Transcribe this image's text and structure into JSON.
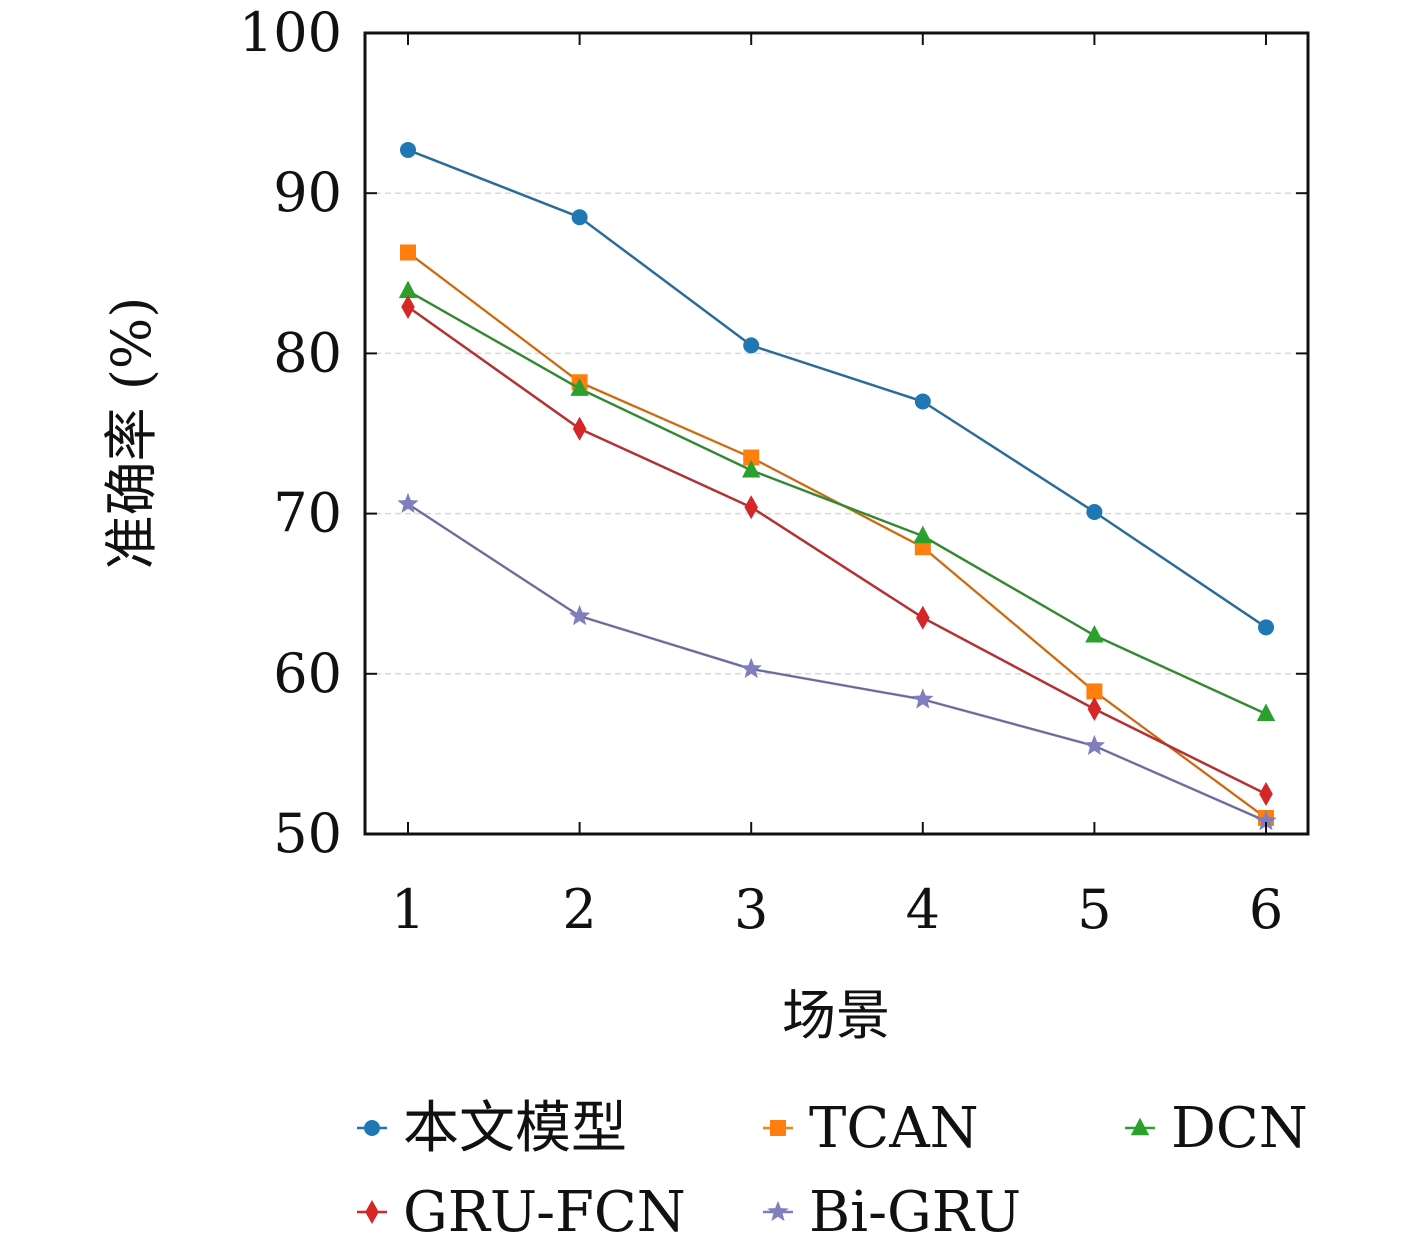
{
  "chart_data": {
    "type": "line",
    "title": "",
    "xlabel": "场景",
    "ylabel": "准确率 (%)",
    "categories": [
      "1",
      "2",
      "3",
      "4",
      "5",
      "6"
    ],
    "ylim": [
      50,
      100
    ],
    "yticks": [
      "50",
      "60",
      "70",
      "80",
      "90",
      "100"
    ],
    "grid": true,
    "legend_position": "bottom",
    "series": [
      {
        "name": "本文模型",
        "color": "#1f77b4",
        "marker": "circle",
        "values": [
          92.7,
          88.5,
          80.5,
          77.0,
          70.1,
          62.9
        ]
      },
      {
        "name": "TCAN",
        "color": "#ff7f0e",
        "marker": "square",
        "values": [
          86.3,
          78.2,
          73.5,
          67.9,
          58.9,
          51.0
        ]
      },
      {
        "name": "DCN",
        "color": "#2ca02c",
        "marker": "triangle",
        "values": [
          83.9,
          77.8,
          72.7,
          68.6,
          62.4,
          57.5
        ]
      },
      {
        "name": "GRU-FCN",
        "color": "#d62728",
        "marker": "diamond",
        "values": [
          82.9,
          75.3,
          70.4,
          63.5,
          57.8,
          52.5
        ]
      },
      {
        "name": "Bi-GRU",
        "color": "#7f7fbf",
        "marker": "star",
        "values": [
          70.6,
          63.6,
          60.3,
          58.4,
          55.5,
          50.8
        ]
      }
    ]
  }
}
